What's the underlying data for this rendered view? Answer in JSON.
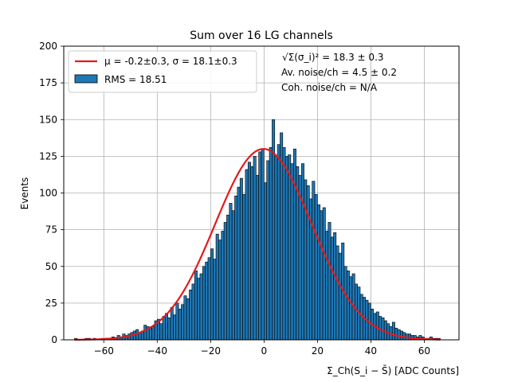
{
  "chart_data": {
    "type": "bar",
    "title": "Sum over 16 LG channels",
    "xlabel": "Σ_Ch(S_i − S̄) [ADC Counts]",
    "ylabel": "Events",
    "xlim": [
      -75,
      73
    ],
    "ylim": [
      0,
      200
    ],
    "xticks": [
      -60,
      -40,
      -20,
      0,
      20,
      40,
      60
    ],
    "yticks": [
      0,
      25,
      50,
      75,
      100,
      125,
      150,
      175,
      200
    ],
    "grid": true,
    "legend_position": "top-left",
    "bin_width": 1,
    "bins_start": -71,
    "values": [
      1,
      0,
      0,
      0,
      1,
      1,
      0,
      1,
      0,
      0,
      1,
      1,
      1,
      1,
      2,
      1,
      3,
      2,
      4,
      3,
      4,
      5,
      6,
      7,
      5,
      6,
      10,
      9,
      8,
      9,
      13,
      14,
      11,
      16,
      18,
      15,
      22,
      17,
      25,
      21,
      24,
      30,
      28,
      34,
      38,
      47,
      42,
      45,
      50,
      53,
      56,
      62,
      55,
      72,
      68,
      74,
      80,
      85,
      93,
      88,
      98,
      104,
      110,
      99,
      116,
      121,
      118,
      125,
      112,
      128,
      130,
      107,
      122,
      131,
      150,
      125,
      133,
      141,
      131,
      125,
      126,
      120,
      130,
      118,
      112,
      120,
      109,
      105,
      96,
      108,
      99,
      92,
      88,
      90,
      74,
      80,
      70,
      73,
      64,
      59,
      66,
      50,
      47,
      43,
      45,
      38,
      36,
      31,
      29,
      27,
      25,
      21,
      18,
      19,
      16,
      15,
      13,
      11,
      9,
      12,
      8,
      7,
      6,
      5,
      4,
      4,
      3,
      3,
      2,
      3,
      2,
      1,
      1,
      2,
      1,
      1,
      1
    ],
    "series": [
      {
        "name": "μ = -0.2±0.3, σ = 18.1±0.3",
        "kind": "gaussian-fit",
        "mu": -0.2,
        "sigma": 18.1,
        "amplitude": 130,
        "color": "#e31a1c"
      },
      {
        "name": "RMS = 18.51",
        "kind": "histogram",
        "color": "#1f77b4"
      }
    ],
    "annotations": {
      "line1": "√Σ(σ_i)² = 18.3 ± 0.3",
      "line2": "Av. noise/ch  = 4.5 ± 0.2",
      "line3": "Coh. noise/ch = N/A"
    }
  }
}
